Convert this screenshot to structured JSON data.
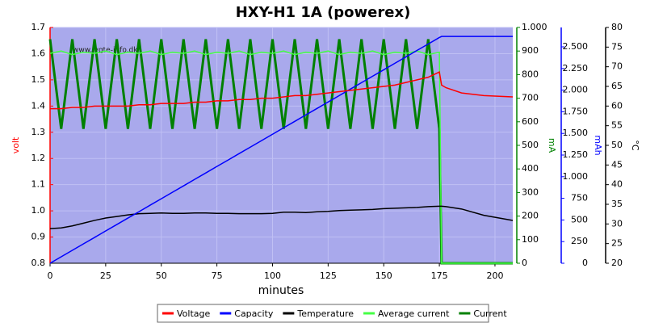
{
  "chart_data": {
    "type": "line",
    "title": "HXY-H1 1A (powerex)",
    "watermark": "www.lygte-info.dk",
    "x_label": "minutes",
    "y_label": "volt",
    "y2_label": "mA",
    "y3_label": "mAh",
    "y4_label": "°C",
    "xlim": [
      0,
      208
    ],
    "xticks": [
      0,
      25,
      50,
      75,
      100,
      125,
      150,
      175,
      200
    ],
    "ylim": [
      0.8,
      1.7
    ],
    "yticks": [
      0.8,
      0.9,
      {
        "value": 1.0,
        "label": "1.0"
      },
      1.1,
      1.2,
      1.3,
      1.4,
      1.5,
      1.6,
      1.7
    ],
    "y2lim": [
      0,
      1000
    ],
    "y2ticks": [
      0,
      100,
      200,
      300,
      400,
      500,
      600,
      700,
      800,
      900,
      {
        "value": 1000,
        "label": "1.000"
      }
    ],
    "y3lim": [
      0,
      2724
    ],
    "y3ticks": [
      0,
      250,
      500,
      750,
      {
        "value": 1000,
        "label": "1.000"
      },
      {
        "value": 1250,
        "label": "1.250"
      },
      {
        "value": 1500,
        "label": "1.500"
      },
      {
        "value": 1750,
        "label": "1.750"
      },
      {
        "value": 2000,
        "label": "2.000"
      },
      {
        "value": 2250,
        "label": "2.250"
      },
      {
        "value": 2500,
        "label": "2.500"
      }
    ],
    "y4lim": [
      20,
      80
    ],
    "y4ticks": [
      20,
      25,
      30,
      35,
      40,
      45,
      50,
      55,
      60,
      65,
      70,
      75,
      80
    ],
    "grid": true,
    "legend": "bottom",
    "x": [
      0,
      5,
      10,
      15,
      20,
      25,
      30,
      35,
      40,
      45,
      50,
      55,
      60,
      65,
      70,
      75,
      80,
      85,
      90,
      95,
      100,
      105,
      110,
      115,
      120,
      125,
      130,
      135,
      140,
      145,
      150,
      155,
      160,
      165,
      170,
      175,
      176,
      178,
      185,
      195,
      208
    ],
    "series": [
      {
        "name": "Voltage",
        "color": "#ff0000",
        "axis": "y",
        "values": [
          1.39,
          1.39,
          1.395,
          1.395,
          1.4,
          1.4,
          1.4,
          1.4,
          1.405,
          1.405,
          1.41,
          1.41,
          1.41,
          1.415,
          1.415,
          1.42,
          1.42,
          1.425,
          1.425,
          1.43,
          1.43,
          1.435,
          1.44,
          1.44,
          1.445,
          1.45,
          1.455,
          1.46,
          1.465,
          1.47,
          1.475,
          1.48,
          1.49,
          1.5,
          1.51,
          1.53,
          1.48,
          1.47,
          1.45,
          1.44,
          1.435
        ]
      },
      {
        "name": "Capacity",
        "color": "#0000ff",
        "axis": "y3",
        "values": [
          0,
          75,
          149,
          224,
          298,
          373,
          447,
          522,
          596,
          671,
          745,
          820,
          894,
          969,
          1043,
          1118,
          1192,
          1267,
          1341,
          1416,
          1490,
          1565,
          1639,
          1714,
          1788,
          1863,
          1937,
          2012,
          2086,
          2161,
          2235,
          2310,
          2384,
          2459,
          2533,
          2608,
          2620,
          2620,
          2620,
          2620,
          2620
        ]
      },
      {
        "name": "Temperature",
        "color": "#000000",
        "axis": "y4",
        "values": [
          28.8,
          29,
          29.5,
          30.2,
          30.9,
          31.5,
          31.9,
          32.3,
          32.6,
          32.7,
          32.8,
          32.7,
          32.7,
          32.8,
          32.8,
          32.7,
          32.7,
          32.6,
          32.6,
          32.6,
          32.7,
          33,
          33,
          32.9,
          33.1,
          33.2,
          33.4,
          33.5,
          33.6,
          33.7,
          33.9,
          34,
          34.1,
          34.2,
          34.4,
          34.5,
          34.5,
          34.4,
          33.8,
          32.2,
          30.9
        ]
      },
      {
        "name": "Average current",
        "color": "#44ff44",
        "axis": "y2",
        "values": [
          890,
          900,
          885,
          895,
          890,
          900,
          885,
          895,
          890,
          900,
          885,
          895,
          890,
          900,
          885,
          895,
          890,
          900,
          885,
          895,
          890,
          900,
          885,
          895,
          890,
          900,
          885,
          895,
          890,
          900,
          885,
          895,
          890,
          900,
          885,
          895,
          0,
          0,
          0,
          0,
          0
        ]
      },
      {
        "name": "Current",
        "color": "#008000",
        "axis": "y2",
        "values": [
          950,
          570,
          950,
          570,
          950,
          570,
          950,
          570,
          950,
          570,
          950,
          570,
          950,
          570,
          950,
          570,
          950,
          570,
          950,
          570,
          950,
          570,
          950,
          570,
          950,
          570,
          950,
          570,
          950,
          570,
          950,
          570,
          950,
          570,
          950,
          570,
          0,
          0,
          0,
          0,
          0
        ]
      }
    ]
  }
}
